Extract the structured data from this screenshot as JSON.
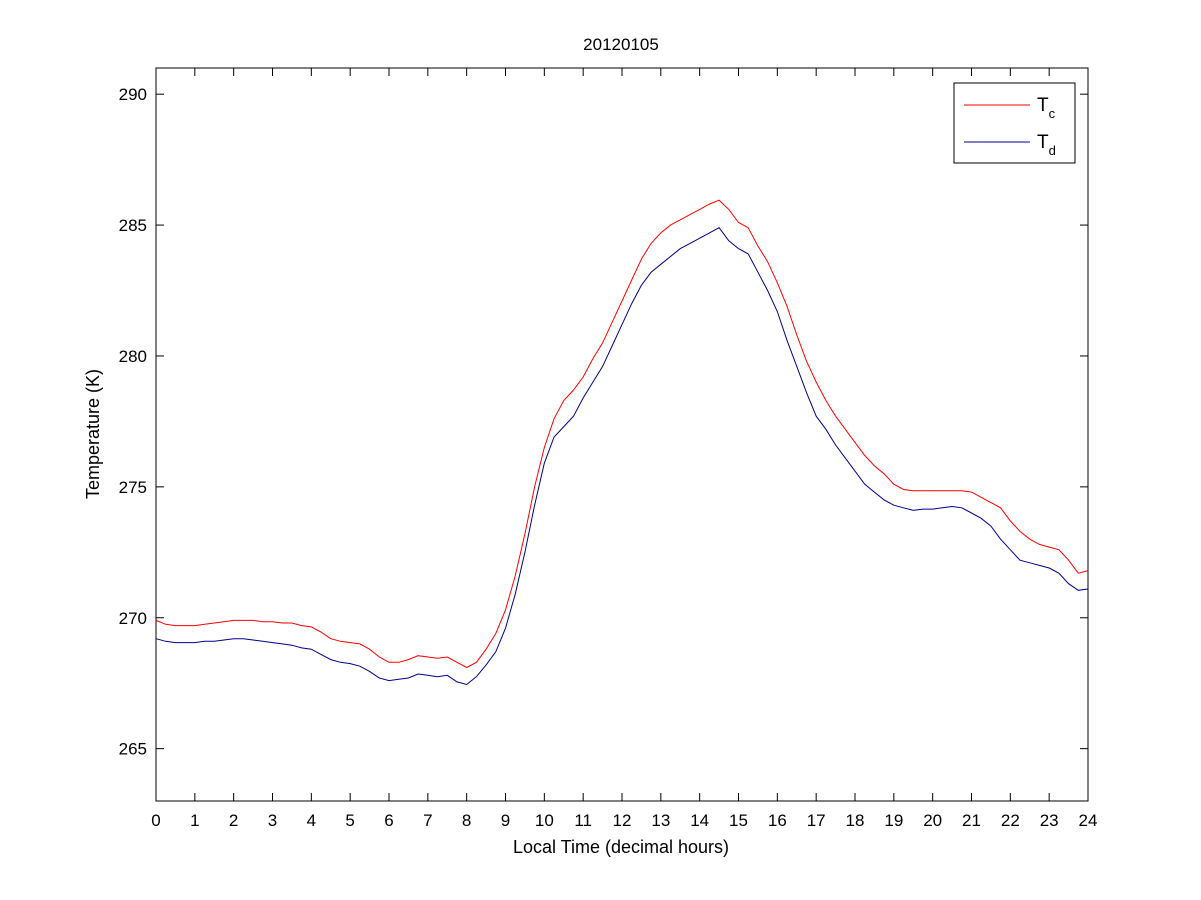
{
  "colors": {
    "background": "#ffffff",
    "axes": "#000000",
    "series_c": "#ff0000",
    "series_d": "#00008b"
  },
  "chart_data": {
    "type": "line",
    "title": "20120105",
    "xlabel": "Local Time (decimal hours)",
    "ylabel": "Temperature (K)",
    "xlim": [
      0,
      24
    ],
    "ylim": [
      263,
      291
    ],
    "xticks": [
      0,
      1,
      2,
      3,
      4,
      5,
      6,
      7,
      8,
      9,
      10,
      11,
      12,
      13,
      14,
      15,
      16,
      17,
      18,
      19,
      20,
      21,
      22,
      23,
      24
    ],
    "xtick_labels": [
      "0",
      "1",
      "2",
      "3",
      "4",
      "5",
      "6",
      "7",
      "8",
      "9",
      "10",
      "11",
      "12",
      "13",
      "14",
      "15",
      "16",
      "17",
      "18",
      "19",
      "20",
      "21",
      "22",
      "23",
      "24"
    ],
    "yticks": [
      265,
      270,
      275,
      280,
      285,
      290
    ],
    "ytick_labels": [
      "265",
      "270",
      "275",
      "280",
      "285",
      "290"
    ],
    "grid": false,
    "legend_position": "top-right",
    "series": [
      {
        "name": "T",
        "subscript": "c",
        "color": "#ff0000",
        "x": [
          0,
          0.25,
          0.5,
          0.75,
          1,
          1.25,
          1.5,
          1.75,
          2,
          2.25,
          2.5,
          2.75,
          3,
          3.25,
          3.5,
          3.75,
          4,
          4.25,
          4.5,
          4.75,
          5,
          5.25,
          5.5,
          5.75,
          6,
          6.25,
          6.5,
          6.75,
          7,
          7.25,
          7.5,
          7.75,
          8,
          8.25,
          8.5,
          8.75,
          9,
          9.25,
          9.5,
          9.75,
          10,
          10.25,
          10.5,
          10.75,
          11,
          11.25,
          11.5,
          11.75,
          12,
          12.25,
          12.5,
          12.75,
          13,
          13.25,
          13.5,
          13.75,
          14,
          14.25,
          14.5,
          14.75,
          15,
          15.25,
          15.5,
          15.75,
          16,
          16.25,
          16.5,
          16.75,
          17,
          17.25,
          17.5,
          17.75,
          18,
          18.25,
          18.5,
          18.75,
          19,
          19.25,
          19.5,
          19.75,
          20,
          20.25,
          20.5,
          20.75,
          21,
          21.25,
          21.5,
          21.75,
          22,
          22.25,
          22.5,
          22.75,
          23,
          23.25,
          23.5,
          23.75,
          24
        ],
        "values": [
          269.9,
          269.75,
          269.7,
          269.7,
          269.7,
          269.75,
          269.8,
          269.85,
          269.9,
          269.9,
          269.9,
          269.85,
          269.85,
          269.8,
          269.8,
          269.7,
          269.65,
          269.45,
          269.2,
          269.1,
          269.05,
          269.0,
          268.8,
          268.5,
          268.3,
          268.3,
          268.4,
          268.55,
          268.5,
          268.45,
          268.5,
          268.3,
          268.1,
          268.3,
          268.8,
          269.4,
          270.3,
          271.6,
          273.2,
          275.0,
          276.5,
          277.6,
          278.3,
          278.7,
          279.2,
          279.9,
          280.5,
          281.3,
          282.1,
          282.9,
          283.7,
          284.3,
          284.7,
          285.0,
          285.2,
          285.4,
          285.6,
          285.8,
          285.95,
          285.6,
          285.1,
          284.9,
          284.2,
          283.6,
          282.8,
          281.9,
          280.8,
          279.8,
          279.0,
          278.3,
          277.7,
          277.2,
          276.7,
          276.2,
          275.8,
          275.5,
          275.1,
          274.9,
          274.85,
          274.85,
          274.85,
          274.85,
          274.85,
          274.85,
          274.8,
          274.6,
          274.4,
          274.2,
          273.7,
          273.3,
          273.0,
          272.8,
          272.7,
          272.6,
          272.2,
          271.7,
          271.8
        ]
      },
      {
        "name": "T",
        "subscript": "d",
        "color": "#00008b",
        "x": [
          0,
          0.25,
          0.5,
          0.75,
          1,
          1.25,
          1.5,
          1.75,
          2,
          2.25,
          2.5,
          2.75,
          3,
          3.25,
          3.5,
          3.75,
          4,
          4.25,
          4.5,
          4.75,
          5,
          5.25,
          5.5,
          5.75,
          6,
          6.25,
          6.5,
          6.75,
          7,
          7.25,
          7.5,
          7.75,
          8,
          8.25,
          8.5,
          8.75,
          9,
          9.25,
          9.5,
          9.75,
          10,
          10.25,
          10.5,
          10.75,
          11,
          11.25,
          11.5,
          11.75,
          12,
          12.25,
          12.5,
          12.75,
          13,
          13.25,
          13.5,
          13.75,
          14,
          14.25,
          14.5,
          14.75,
          15,
          15.25,
          15.5,
          15.75,
          16,
          16.25,
          16.5,
          16.75,
          17,
          17.25,
          17.5,
          17.75,
          18,
          18.25,
          18.5,
          18.75,
          19,
          19.25,
          19.5,
          19.75,
          20,
          20.25,
          20.5,
          20.75,
          21,
          21.25,
          21.5,
          21.75,
          22,
          22.25,
          22.5,
          22.75,
          23,
          23.25,
          23.5,
          23.75,
          24
        ],
        "values": [
          269.2,
          269.1,
          269.05,
          269.05,
          269.05,
          269.1,
          269.1,
          269.15,
          269.2,
          269.2,
          269.15,
          269.1,
          269.05,
          269.0,
          268.95,
          268.85,
          268.8,
          268.6,
          268.4,
          268.3,
          268.25,
          268.15,
          267.95,
          267.7,
          267.6,
          267.65,
          267.7,
          267.85,
          267.8,
          267.75,
          267.8,
          267.55,
          267.45,
          267.75,
          268.2,
          268.7,
          269.6,
          270.9,
          272.5,
          274.3,
          275.9,
          276.9,
          277.3,
          277.7,
          278.4,
          279.0,
          279.6,
          280.4,
          281.2,
          282.0,
          282.7,
          283.2,
          283.5,
          283.8,
          284.1,
          284.3,
          284.5,
          284.7,
          284.9,
          284.4,
          284.1,
          283.9,
          283.2,
          282.5,
          281.7,
          280.6,
          279.6,
          278.6,
          277.7,
          277.2,
          276.6,
          276.1,
          275.6,
          275.1,
          274.8,
          274.5,
          274.3,
          274.2,
          274.1,
          274.15,
          274.15,
          274.2,
          274.25,
          274.2,
          274.0,
          273.8,
          273.5,
          273.0,
          272.6,
          272.2,
          272.1,
          272.0,
          271.9,
          271.7,
          271.3,
          271.05,
          271.1
        ]
      }
    ]
  }
}
